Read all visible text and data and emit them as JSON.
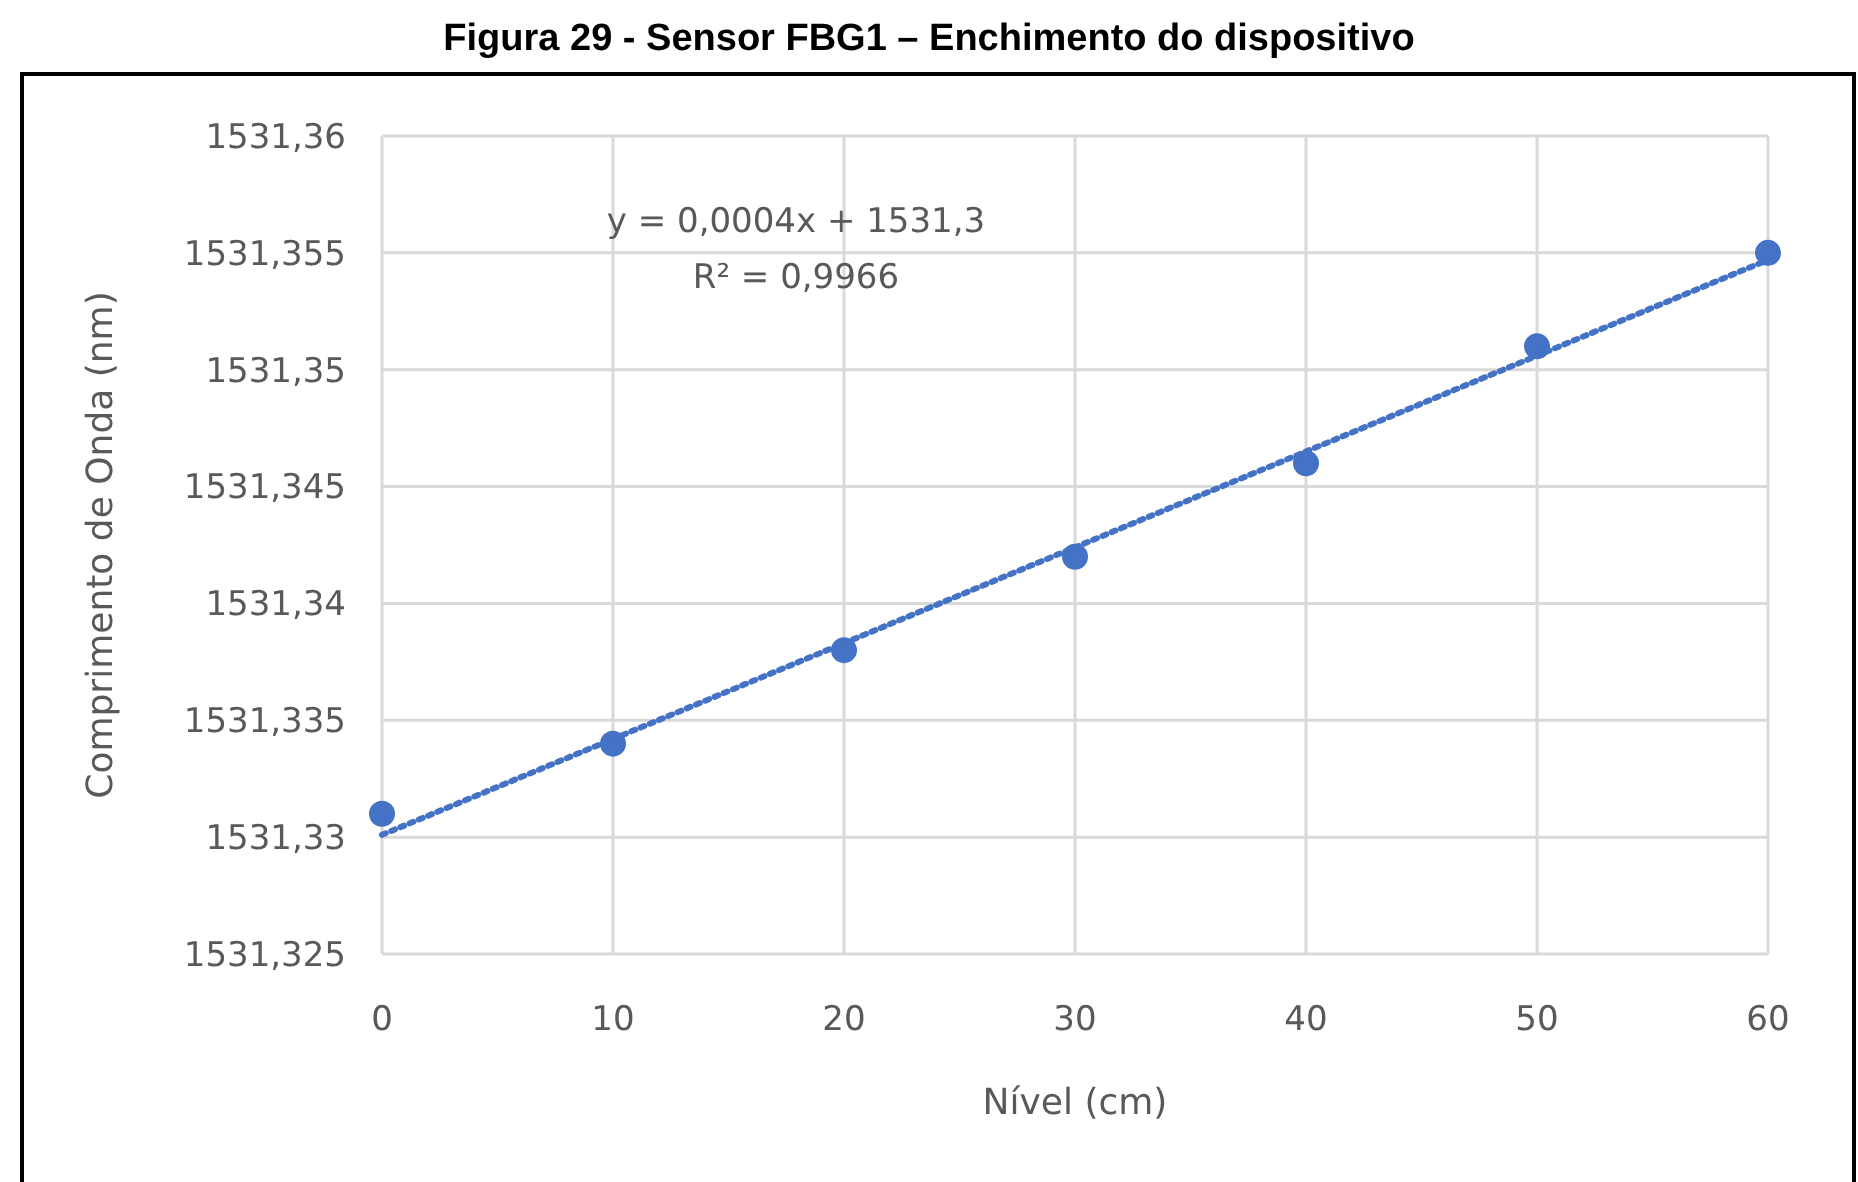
{
  "chart_data": {
    "type": "scatter",
    "title": "Figura 29 -  Sensor FBG1 – Enchimento do dispositivo",
    "xlabel": "Nível (cm)",
    "ylabel": "Comprimento de Onda (nm)",
    "x": [
      0,
      10,
      20,
      30,
      40,
      50,
      60
    ],
    "series": [
      {
        "color": "#4472c4",
        "marker": "circle",
        "values": [
          1531.331,
          1531.334,
          1531.338,
          1531.342,
          1531.346,
          1531.351,
          1531.355
        ]
      },
      {
        "type": "line",
        "color": "#4472c4",
        "line_style": "dotted",
        "marker": "none",
        "x": [
          0,
          60
        ],
        "values": [
          1531.3301,
          1531.3547
        ]
      }
    ],
    "annotations": [
      "y = 0,0004x + 1531,3",
      "R² = 0,9966"
    ],
    "xlim": [
      0,
      60
    ],
    "xticks": [
      0,
      10,
      20,
      30,
      40,
      50,
      60
    ],
    "ylim": [
      1531.325,
      1531.36
    ],
    "yticks": [
      {
        "value": 1531.325,
        "label": "1531,325"
      },
      {
        "value": 1531.33,
        "label": "1531,33"
      },
      {
        "value": 1531.335,
        "label": "1531,335"
      },
      {
        "value": 1531.34,
        "label": "1531,34"
      },
      {
        "value": 1531.345,
        "label": "1531,345"
      },
      {
        "value": 1531.35,
        "label": "1531,35"
      },
      {
        "value": 1531.355,
        "label": "1531,355"
      },
      {
        "value": 1531.36,
        "label": "1531,36"
      }
    ],
    "grid": true
  }
}
